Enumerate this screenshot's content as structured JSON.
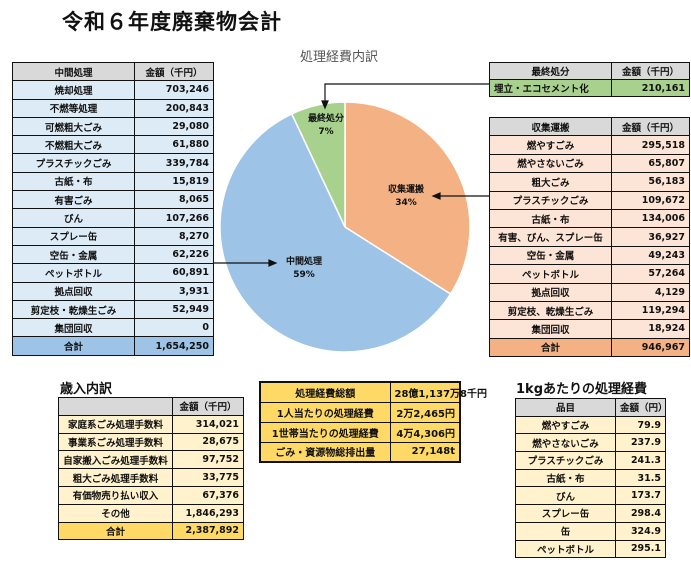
{
  "title": "令和６年度廃棄物会計",
  "chart_data": {
    "type": "pie",
    "title": "処理経費内訳",
    "slices": [
      {
        "label": "収集運搬",
        "percent": 34,
        "value": 946967,
        "color": "#f4b183"
      },
      {
        "label": "中間処理",
        "percent": 59,
        "value": 1654250,
        "color": "#9dc3e6"
      },
      {
        "label": "最終処分",
        "percent": 7,
        "value": 210161,
        "color": "#a9d18e"
      }
    ]
  },
  "intermediate": {
    "header": [
      "中間処理",
      "金額（千円）"
    ],
    "rows": [
      [
        "焼却処理",
        "703,246"
      ],
      [
        "不燃等処理",
        "200,843"
      ],
      [
        "可燃粗大ごみ",
        "29,080"
      ],
      [
        "不燃粗大ごみ",
        "61,880"
      ],
      [
        "プラスチックごみ",
        "339,784"
      ],
      [
        "古紙・布",
        "15,819"
      ],
      [
        "有害ごみ",
        "8,065"
      ],
      [
        "びん",
        "107,266"
      ],
      [
        "スプレー缶",
        "8,270"
      ],
      [
        "空缶・金属",
        "62,226"
      ],
      [
        "ペットボトル",
        "60,891"
      ],
      [
        "拠点回収",
        "3,931"
      ],
      [
        "剪定枝・乾燥生ごみ",
        "52,949"
      ],
      [
        "集団回収",
        "0"
      ]
    ],
    "total": [
      "合計",
      "1,654,250"
    ]
  },
  "final": {
    "header": [
      "最終処分",
      "金額（千円）"
    ],
    "rows": [
      [
        "埋立・エコセメント化",
        "210,161"
      ]
    ]
  },
  "collection": {
    "header": [
      "収集運搬",
      "金額（千円）"
    ],
    "rows": [
      [
        "燃やすごみ",
        "295,518"
      ],
      [
        "燃やさないごみ",
        "65,807"
      ],
      [
        "粗大ごみ",
        "56,183"
      ],
      [
        "プラスチックごみ",
        "109,672"
      ],
      [
        "古紙・布",
        "134,006"
      ],
      [
        "有害、びん、スプレー缶",
        "36,927"
      ],
      [
        "空缶・金属",
        "49,243"
      ],
      [
        "ペットボトル",
        "57,264"
      ],
      [
        "拠点回収",
        "4,129"
      ],
      [
        "剪定枝、乾燥生ごみ",
        "119,294"
      ],
      [
        "集団回収",
        "18,924"
      ]
    ],
    "total": [
      "合計",
      "946,967"
    ]
  },
  "revenue": {
    "title": "歳入内訳",
    "header": [
      "",
      "金額（千円）"
    ],
    "rows": [
      [
        "家庭系ごみ処理手数料",
        "314,021"
      ],
      [
        "事業系ごみ処理手数料",
        "28,675"
      ],
      [
        "自家搬入ごみ処理手数料",
        "97,752"
      ],
      [
        "粗大ごみ処理手数料",
        "33,775"
      ],
      [
        "有価物売り払い収入",
        "67,376"
      ],
      [
        "その他",
        "1,846,293"
      ]
    ],
    "total": [
      "合計",
      "2,387,892"
    ]
  },
  "summary": {
    "rows": [
      [
        "処理経費総額",
        "28億1,137万8千円"
      ],
      [
        "1人当たりの処理経費",
        "2万2,465円"
      ],
      [
        "1世帯当たりの処理経費",
        "4万4,306円"
      ],
      [
        "ごみ・資源物総排出量",
        "27,148t"
      ]
    ]
  },
  "perkg": {
    "title": "1kgあたりの処理経費",
    "header": [
      "品目",
      "金額（円）"
    ],
    "rows": [
      [
        "燃やすごみ",
        "79.9"
      ],
      [
        "燃やさないごみ",
        "237.9"
      ],
      [
        "プラスチックごみ",
        "241.3"
      ],
      [
        "古紙・布",
        "31.5"
      ],
      [
        "びん",
        "173.7"
      ],
      [
        "スプレー缶",
        "298.4"
      ],
      [
        "缶",
        "324.9"
      ],
      [
        "ペットボトル",
        "295.1"
      ]
    ]
  }
}
